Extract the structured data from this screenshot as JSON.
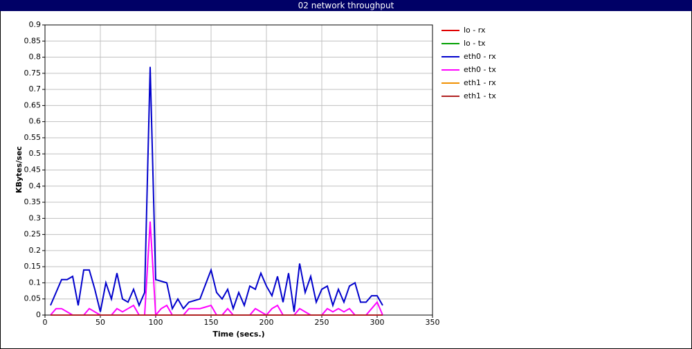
{
  "chart_data": {
    "type": "line",
    "title": "02 network throughput",
    "x_label": "Time (secs.)",
    "y_label": "KBytes/sec",
    "x": [
      5,
      10,
      15,
      20,
      25,
      30,
      35,
      40,
      45,
      50,
      55,
      60,
      65,
      70,
      75,
      80,
      85,
      90,
      95,
      100,
      105,
      110,
      115,
      120,
      125,
      130,
      135,
      140,
      145,
      150,
      155,
      160,
      165,
      170,
      175,
      180,
      185,
      190,
      195,
      200,
      205,
      210,
      215,
      220,
      225,
      230,
      235,
      240,
      245,
      250,
      255,
      260,
      265,
      270,
      275,
      280,
      285,
      290,
      295,
      300,
      305
    ],
    "series": [
      {
        "name": "lo - rx",
        "color": "#e00000",
        "values": [
          0,
          0,
          0,
          0,
          0,
          0,
          0,
          0,
          0,
          0,
          0,
          0,
          0,
          0,
          0,
          0,
          0,
          0,
          0,
          0,
          0,
          0,
          0,
          0,
          0,
          0,
          0,
          0,
          0,
          0,
          0,
          0,
          0,
          0,
          0,
          0,
          0,
          0,
          0,
          0,
          0,
          0,
          0,
          0,
          0,
          0,
          0,
          0,
          0,
          0,
          0,
          0,
          0,
          0,
          0,
          0,
          0,
          0,
          0,
          0,
          0
        ]
      },
      {
        "name": "lo - tx",
        "color": "#00a000",
        "values": [
          0,
          0,
          0,
          0,
          0,
          0,
          0,
          0,
          0,
          0,
          0,
          0,
          0,
          0,
          0,
          0,
          0,
          0,
          0,
          0,
          0,
          0,
          0,
          0,
          0,
          0,
          0,
          0,
          0,
          0,
          0,
          0,
          0,
          0,
          0,
          0,
          0,
          0,
          0,
          0,
          0,
          0,
          0,
          0,
          0,
          0,
          0,
          0,
          0,
          0,
          0,
          0,
          0,
          0,
          0,
          0,
          0,
          0,
          0,
          0,
          0
        ]
      },
      {
        "name": "eth0 - rx",
        "color": "#0000cc",
        "values": [
          0.03,
          0.07,
          0.11,
          0.11,
          0.12,
          0.03,
          0.14,
          0.14,
          0.08,
          0.01,
          0.1,
          0.05,
          0.13,
          0.05,
          0.04,
          0.08,
          0.03,
          0.07,
          0.77,
          0.11,
          0.105,
          0.1,
          0.02,
          0.05,
          0.02,
          0.04,
          0.045,
          0.05,
          0.095,
          0.14,
          0.07,
          0.05,
          0.08,
          0.02,
          0.07,
          0.03,
          0.09,
          0.08,
          0.13,
          0.09,
          0.06,
          0.12,
          0.04,
          0.13,
          0.01,
          0.16,
          0.07,
          0.12,
          0.04,
          0.08,
          0.09,
          0.03,
          0.08,
          0.04,
          0.09,
          0.1,
          0.04,
          0.04,
          0.06,
          0.06,
          0.03
        ]
      },
      {
        "name": "eth0 - tx",
        "color": "#ff00ff",
        "values": [
          0,
          0.02,
          0.02,
          0.01,
          0,
          0,
          0,
          0.02,
          0.01,
          0,
          0,
          0,
          0.02,
          0.01,
          0.02,
          0.03,
          0,
          0,
          0.29,
          0,
          0.02,
          0.03,
          0,
          0,
          0,
          0.02,
          0.02,
          0.02,
          0.025,
          0.03,
          0,
          0,
          0.02,
          0,
          0,
          0,
          0,
          0.02,
          0.01,
          0,
          0.02,
          0.03,
          0,
          0,
          0,
          0.02,
          0.01,
          0,
          0,
          0,
          0.02,
          0.01,
          0.02,
          0.01,
          0.02,
          0,
          0,
          0,
          0.02,
          0.04,
          0
        ]
      },
      {
        "name": "eth1 - rx",
        "color": "#f09000",
        "values": [
          0,
          0,
          0,
          0,
          0,
          0,
          0,
          0,
          0,
          0,
          0,
          0,
          0,
          0,
          0,
          0,
          0,
          0,
          0,
          0,
          0,
          0,
          0,
          0,
          0,
          0,
          0,
          0,
          0,
          0,
          0,
          0,
          0,
          0,
          0,
          0,
          0,
          0,
          0,
          0,
          0,
          0,
          0,
          0,
          0,
          0,
          0,
          0,
          0,
          0,
          0,
          0,
          0,
          0,
          0,
          0,
          0,
          0,
          0,
          0,
          0
        ]
      },
      {
        "name": "eth1 - tx",
        "color": "#b02020",
        "values": [
          0,
          0,
          0,
          0,
          0,
          0,
          0,
          0,
          0,
          0,
          0,
          0,
          0,
          0,
          0,
          0,
          0,
          0,
          0,
          0,
          0,
          0,
          0,
          0,
          0,
          0,
          0,
          0,
          0,
          0,
          0,
          0,
          0,
          0,
          0,
          0,
          0,
          0,
          0,
          0,
          0,
          0,
          0,
          0,
          0,
          0,
          0,
          0,
          0,
          0,
          0,
          0,
          0,
          0,
          0,
          0,
          0,
          0,
          0,
          0,
          0
        ]
      }
    ],
    "xlim": [
      0,
      350
    ],
    "xticks": [
      0,
      50,
      100,
      150,
      200,
      250,
      300,
      350
    ],
    "ylim": [
      0,
      0.9
    ],
    "yticks": [
      0,
      0.05,
      0.1,
      0.15,
      0.2,
      0.25,
      0.3,
      0.35,
      0.4,
      0.45,
      0.5,
      0.55,
      0.6,
      0.65,
      0.7,
      0.75,
      0.8,
      0.85,
      0.9
    ],
    "grid": true,
    "legend": "right"
  }
}
